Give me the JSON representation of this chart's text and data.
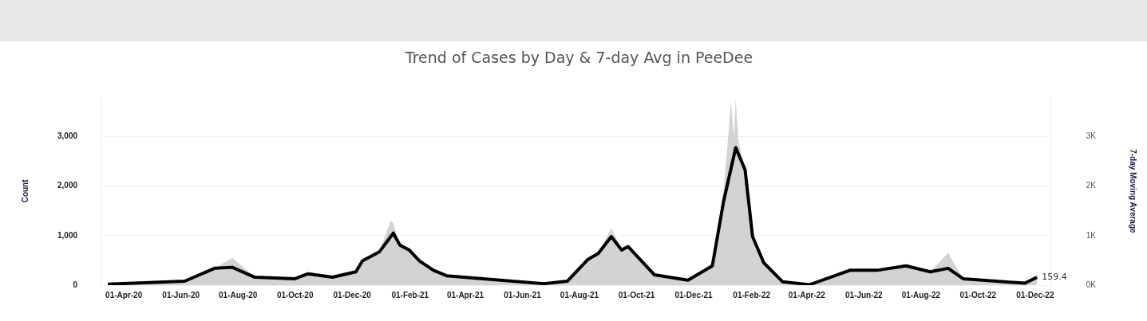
{
  "chart_data": {
    "type": "line",
    "title": "Trend of Cases by Day & 7-day Avg in PeeDee",
    "ylabel": "Count",
    "y2label": "7-day Moving Average",
    "xlim": [
      "2020-03-08",
      "2022-12-18"
    ],
    "xticks": [
      {
        "value": "2020-04-01",
        "label": "01-Apr-20"
      },
      {
        "value": "2020-06-01",
        "label": "01-Jun-20"
      },
      {
        "value": "2020-08-01",
        "label": "01-Aug-20"
      },
      {
        "value": "2020-10-01",
        "label": "01-Oct-20"
      },
      {
        "value": "2020-12-01",
        "label": "01-Dec-20"
      },
      {
        "value": "2021-02-01",
        "label": "01-Feb-21"
      },
      {
        "value": "2021-04-01",
        "label": "01-Apr-21"
      },
      {
        "value": "2021-06-01",
        "label": "01-Jun-21"
      },
      {
        "value": "2021-08-01",
        "label": "01-Aug-21"
      },
      {
        "value": "2021-10-01",
        "label": "01-Oct-21"
      },
      {
        "value": "2021-12-01",
        "label": "01-Dec-21"
      },
      {
        "value": "2022-02-01",
        "label": "01-Feb-22"
      },
      {
        "value": "2022-04-01",
        "label": "01-Apr-22"
      },
      {
        "value": "2022-06-01",
        "label": "01-Jun-22"
      },
      {
        "value": "2022-08-01",
        "label": "01-Aug-22"
      },
      {
        "value": "2022-10-01",
        "label": "01-Oct-22"
      },
      {
        "value": "2022-12-01",
        "label": "01-Dec-22"
      }
    ],
    "ylim": [
      0,
      3800
    ],
    "yticks": [
      0,
      {
        "value": 1000,
        "label": "1,000"
      },
      {
        "value": 2000,
        "label": "2,000"
      },
      {
        "value": 3000,
        "label": "3,000"
      }
    ],
    "y2lim": [
      0,
      3800
    ],
    "y2ticks": [
      {
        "value": 0,
        "label": "0K"
      },
      {
        "value": 1000,
        "label": "1K"
      },
      {
        "value": 2000,
        "label": "2K"
      },
      {
        "value": 3000,
        "label": "3K"
      }
    ],
    "grid": "y",
    "legend": false,
    "marker": "none",
    "line_style": "solid",
    "series": [
      {
        "type": "area",
        "color": "#d3d3d3",
        "x": [
          "2020-03-15",
          "2020-06-05",
          "2020-07-07",
          "2020-07-26",
          "2020-08-19",
          "2020-10-01",
          "2020-10-15",
          "2020-11-10",
          "2020-12-05",
          "2020-12-12",
          "2020-12-30",
          "2021-01-11",
          "2021-01-14",
          "2021-01-21",
          "2021-01-31",
          "2021-02-11",
          "2021-02-26",
          "2021-03-12",
          "2021-04-20",
          "2021-06-24",
          "2021-07-19",
          "2021-08-10",
          "2021-08-21",
          "2021-09-04",
          "2021-09-15",
          "2021-09-22",
          "2021-10-20",
          "2021-11-25",
          "2021-12-21",
          "2022-01-02",
          "2022-01-10",
          "2022-01-13",
          "2022-01-15",
          "2022-01-18",
          "2022-01-25",
          "2022-02-02",
          "2022-02-14",
          "2022-03-06",
          "2022-04-04",
          "2022-05-17",
          "2022-06-15",
          "2022-07-16",
          "2022-08-11",
          "2022-08-30",
          "2022-09-15",
          "2022-11-20",
          "2022-12-03"
        ],
        "values": [
          20,
          80,
          340,
          550,
          160,
          130,
          230,
          160,
          270,
          490,
          670,
          1300,
          1250,
          810,
          710,
          490,
          300,
          190,
          130,
          30,
          80,
          520,
          640,
          1150,
          710,
          780,
          210,
          100,
          390,
          1900,
          3700,
          3000,
          3750,
          2900,
          2330,
          980,
          450,
          70,
          10,
          300,
          300,
          390,
          270,
          650,
          130,
          40,
          160
        ]
      },
      {
        "type": "line",
        "axis": "y2",
        "color": "#000000",
        "x": [
          "2020-03-15",
          "2020-06-05",
          "2020-07-07",
          "2020-07-26",
          "2020-08-19",
          "2020-10-01",
          "2020-10-15",
          "2020-11-10",
          "2020-12-05",
          "2020-12-12",
          "2020-12-30",
          "2021-01-14",
          "2021-01-21",
          "2021-01-31",
          "2021-02-11",
          "2021-02-26",
          "2021-03-12",
          "2021-04-20",
          "2021-06-24",
          "2021-07-19",
          "2021-08-10",
          "2021-08-21",
          "2021-09-04",
          "2021-09-15",
          "2021-09-22",
          "2021-10-20",
          "2021-11-25",
          "2021-12-21",
          "2022-01-02",
          "2022-01-15",
          "2022-01-25",
          "2022-02-02",
          "2022-02-14",
          "2022-03-06",
          "2022-04-04",
          "2022-05-17",
          "2022-06-15",
          "2022-07-16",
          "2022-08-11",
          "2022-08-30",
          "2022-09-15",
          "2022-11-20",
          "2022-12-03"
        ],
        "values": [
          20,
          80,
          340,
          360,
          160,
          130,
          230,
          160,
          270,
          490,
          670,
          1050,
          810,
          710,
          490,
          300,
          190,
          130,
          30,
          80,
          520,
          640,
          980,
          710,
          780,
          210,
          100,
          390,
          1690,
          2780,
          2330,
          980,
          450,
          70,
          10,
          300,
          300,
          390,
          270,
          340,
          130,
          40,
          159.4
        ],
        "value_labels": [
          null,
          null,
          null,
          null,
          null,
          null,
          null,
          null,
          null,
          null,
          null,
          null,
          null,
          null,
          null,
          null,
          null,
          null,
          null,
          null,
          null,
          null,
          null,
          null,
          null,
          null,
          null,
          null,
          null,
          null,
          null,
          null,
          null,
          null,
          null,
          null,
          null,
          null,
          null,
          null,
          null,
          null,
          "159.4"
        ]
      }
    ]
  }
}
